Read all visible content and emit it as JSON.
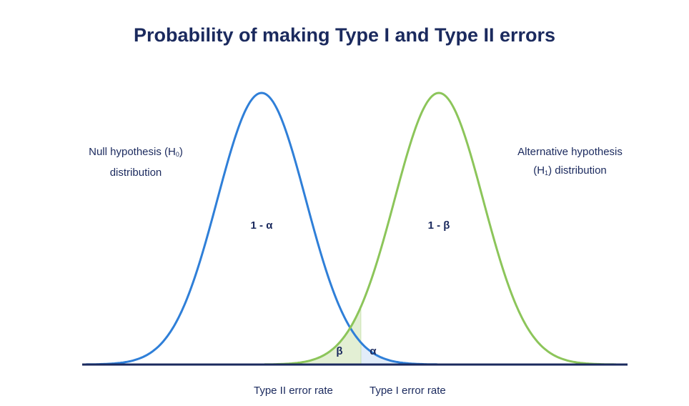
{
  "title": "Probability of making Type I and Type II errors",
  "null_label": {
    "text": "Null hypothesis (H",
    "sub": "0",
    "after": ")",
    "line2": "distribution"
  },
  "alt_label": {
    "line1": "Alternative hypothesis",
    "pre": "(H",
    "sub": "1",
    "post": ") distribution"
  },
  "region_labels": {
    "null_center": "1 - α",
    "alt_center": "1 - β",
    "beta": "β",
    "alpha": "α"
  },
  "axis_labels": {
    "type2": "Type II error rate",
    "type1": "Type I error rate"
  },
  "colors": {
    "null_curve": "#2f7fd8",
    "alt_curve": "#8cc55a",
    "beta_fill": "#e3efd4",
    "alpha_fill": "#e2edf9",
    "axis": "#1b2a5e"
  }
}
